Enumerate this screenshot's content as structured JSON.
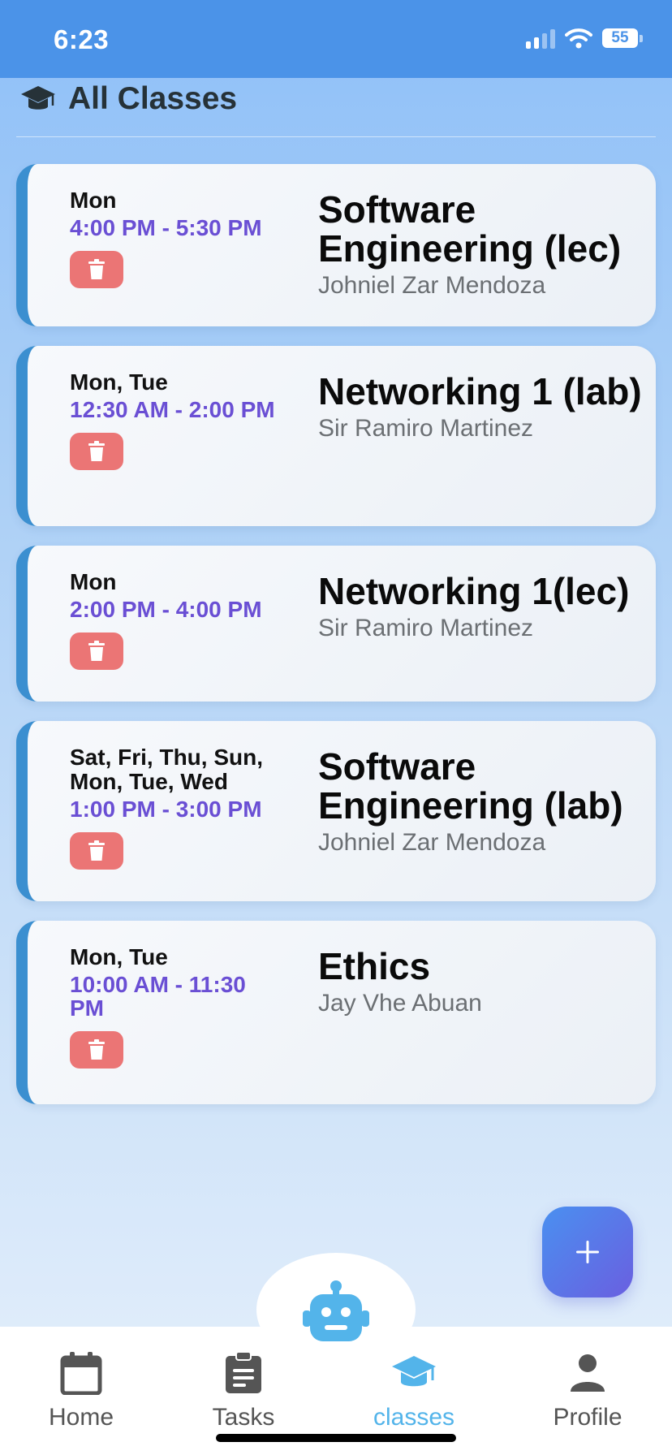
{
  "status_bar": {
    "time": "6:23",
    "battery": "55"
  },
  "header": {
    "title": "All Classes",
    "icon": "graduation-cap-icon"
  },
  "classes": [
    {
      "days": "Mon",
      "time": "4:00 PM - 5:30 PM",
      "title": "Software Engineering (lec)",
      "instructor": "Johniel Zar Mendoza"
    },
    {
      "days": "Mon, Tue",
      "time": "12:30 AM - 2:00 PM",
      "title": "Networking 1 (lab)",
      "instructor": "Sir Ramiro Martinez"
    },
    {
      "days": "Mon",
      "time": "2:00 PM - 4:00 PM",
      "title": "Networking 1(lec)",
      "instructor": "Sir Ramiro Martinez"
    },
    {
      "days": "Sat, Fri, Thu, Sun, Mon, Tue, Wed",
      "time": "1:00 PM - 3:00 PM",
      "title": "Software Engineering (lab)",
      "instructor": "Johniel Zar Mendoza"
    },
    {
      "days": "Mon, Tue",
      "time": "10:00 AM - 11:30 PM",
      "title": "Ethics",
      "instructor": "Jay Vhe Abuan"
    }
  ],
  "fab": {
    "label": "+",
    "icon": "plus-icon"
  },
  "assistant": {
    "icon": "robot-icon"
  },
  "tabs": [
    {
      "label": "Home",
      "icon": "calendar-icon",
      "active": false
    },
    {
      "label": "Tasks",
      "icon": "clipboard-icon",
      "active": false
    },
    {
      "label": "classes",
      "icon": "graduation-cap-icon",
      "active": true
    },
    {
      "label": "Profile",
      "icon": "person-icon",
      "active": false
    }
  ],
  "colors": {
    "status_bar": "#4b93e8",
    "card_accent": "#3b8fd0",
    "time_text": "#6a4fd4",
    "delete_button": "#eb7575",
    "active_tab": "#53b4ea",
    "inactive_tab": "#555555",
    "fab_gradient_start": "#4a90f0",
    "fab_gradient_end": "#6a5fe0"
  }
}
